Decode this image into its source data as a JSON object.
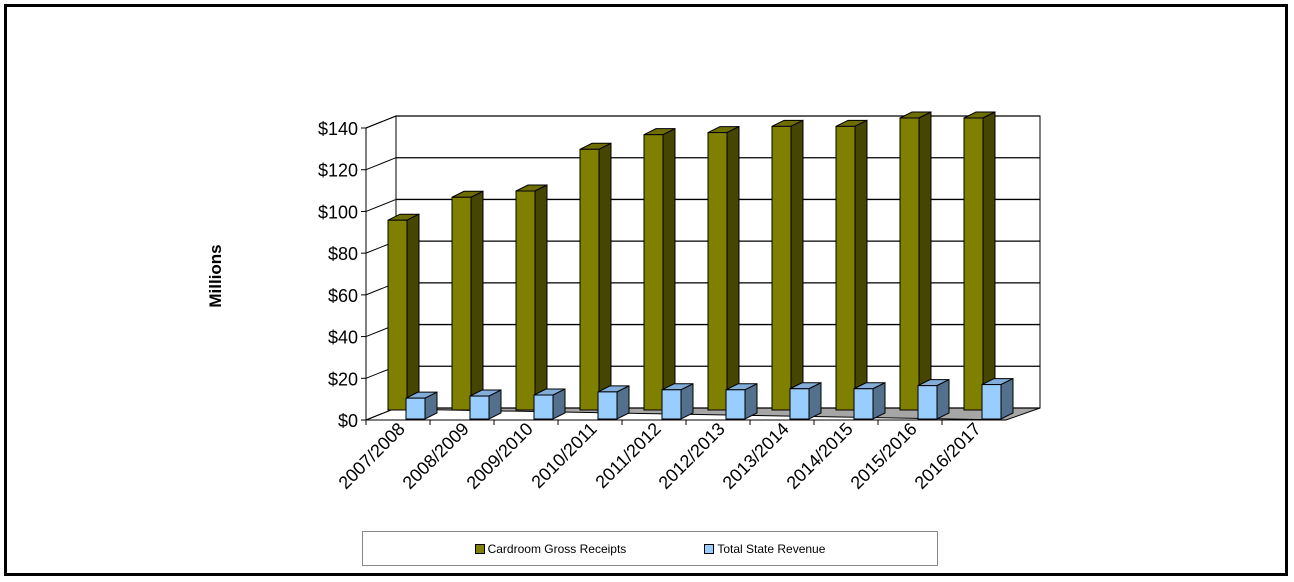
{
  "chart_data": {
    "type": "bar",
    "title": "",
    "xlabel": "",
    "ylabel": "Millions",
    "ylim": [
      0,
      140
    ],
    "y_ticks": [
      "$0",
      "$20",
      "$40",
      "$60",
      "$80",
      "$100",
      "$120",
      "$140"
    ],
    "y_tick_values": [
      0,
      20,
      40,
      60,
      80,
      100,
      120,
      140
    ],
    "grid": true,
    "legend_position": "bottom",
    "categories": [
      "2007/2008",
      "2008/2009",
      "2009/2010",
      "2010/2011",
      "2011/2012",
      "2012/2013",
      "2013/2014",
      "2014/2015",
      "2015/2016",
      "2016/2017"
    ],
    "series": [
      {
        "name": "Cardroom Gross Receipts",
        "color": "#808000",
        "values": [
          91,
          102,
          105,
          125,
          132,
          133,
          136,
          136,
          140,
          140
        ]
      },
      {
        "name": "Total State Revenue",
        "color": "#99ccff",
        "values": [
          10,
          11,
          11.5,
          13,
          14,
          14,
          14.5,
          14.5,
          16,
          16.5
        ]
      }
    ]
  }
}
